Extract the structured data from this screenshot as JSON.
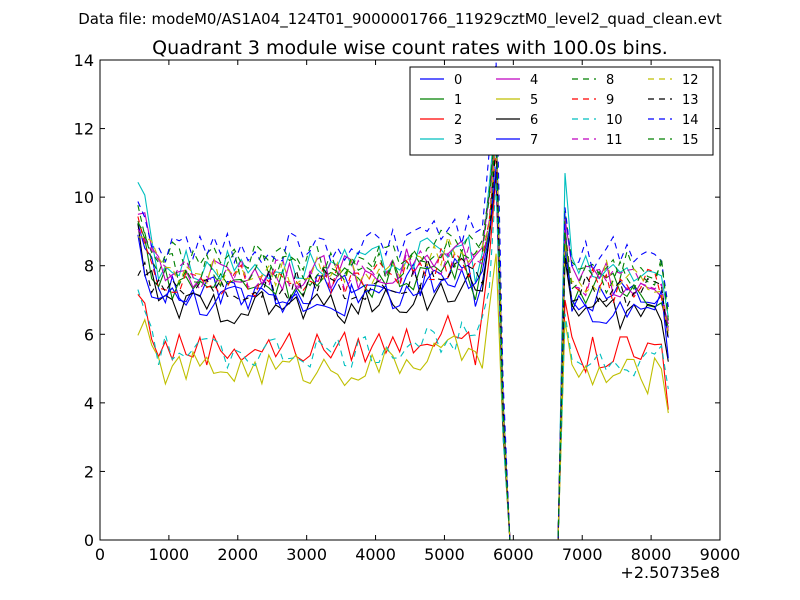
{
  "figure": {
    "suptitle": "Data file: modeM0/AS1A04_124T01_9000001766_11929cztM0_level2_quad_clean.evt",
    "title": "Quadrant 3 module wise count rates with 100.0s bins.",
    "x_offset_label": "+2.50735e8"
  },
  "chart_data": {
    "type": "line",
    "title": "Quadrant 3 module wise count rates with 100.0s bins.",
    "xlabel": "",
    "ylabel": "",
    "xlim": [
      0,
      9000
    ],
    "ylim": [
      0,
      14
    ],
    "x_offset": 250735000,
    "xticks": [
      0,
      1000,
      2000,
      3000,
      4000,
      5000,
      6000,
      7000,
      8000,
      9000
    ],
    "yticks": [
      0,
      2,
      4,
      6,
      8,
      10,
      12,
      14
    ],
    "grid": false,
    "legend": {
      "placement": "top-right",
      "columns": 4
    },
    "segments": [
      {
        "x_start": 550,
        "x_end": 5750,
        "step": 100
      },
      {
        "x_start": 6750,
        "x_end": 8250,
        "step": 100
      }
    ],
    "gap": {
      "x": [
        5850,
        5950,
        6050,
        6650,
        6750
      ],
      "y_note": "drop to zero between segments"
    },
    "series": [
      {
        "name": "0",
        "color": "#0000ff",
        "dash": "solid",
        "base": 7.3,
        "start": 9.0,
        "end": 5.9,
        "peak": 11.5,
        "restart": 9.2
      },
      {
        "name": "1",
        "color": "#008000",
        "dash": "solid",
        "base": 7.5,
        "start": 9.2,
        "end": 6.2,
        "peak": 12.0,
        "restart": 9.0
      },
      {
        "name": "2",
        "color": "#ff0000",
        "dash": "solid",
        "base": 5.6,
        "start": 7.2,
        "end": 3.8,
        "peak": 10.5,
        "restart": 7.0
      },
      {
        "name": "3",
        "color": "#00bfbf",
        "dash": "solid",
        "base": 8.0,
        "start": 10.6,
        "end": 6.5,
        "peak": 12.5,
        "restart": 10.7
      },
      {
        "name": "4",
        "color": "#bf00bf",
        "dash": "solid",
        "base": 7.8,
        "start": 9.8,
        "end": 6.3,
        "peak": 12.2,
        "restart": 9.4
      },
      {
        "name": "5",
        "color": "#bfbf00",
        "dash": "solid",
        "base": 5.0,
        "start": 6.4,
        "end": 3.7,
        "peak": 8.5,
        "restart": 6.4
      },
      {
        "name": "6",
        "color": "#000000",
        "dash": "solid",
        "base": 6.8,
        "start": 8.8,
        "end": 5.2,
        "peak": 11.0,
        "restart": 8.2
      },
      {
        "name": "7",
        "color": "#0000ff",
        "dash": "solid",
        "base": 7.0,
        "start": 8.6,
        "end": 5.3,
        "peak": 11.2,
        "restart": 8.5
      },
      {
        "name": "8",
        "color": "#008000",
        "dash": "dashed",
        "base": 8.2,
        "start": 9.6,
        "end": 6.6,
        "peak": 12.3,
        "restart": 9.6
      },
      {
        "name": "9",
        "color": "#ff0000",
        "dash": "dashed",
        "base": 7.6,
        "start": 9.4,
        "end": 6.0,
        "peak": 11.8,
        "restart": 8.8
      },
      {
        "name": "10",
        "color": "#00bfbf",
        "dash": "dashed",
        "base": 5.5,
        "start": 7.4,
        "end": 4.4,
        "peak": 10.0,
        "restart": 6.6
      },
      {
        "name": "11",
        "color": "#bf00bf",
        "dash": "dashed",
        "base": 7.7,
        "start": 9.3,
        "end": 6.1,
        "peak": 12.0,
        "restart": 9.1
      },
      {
        "name": "12",
        "color": "#bfbf00",
        "dash": "dashed",
        "base": 7.9,
        "start": 9.2,
        "end": 6.0,
        "peak": 11.6,
        "restart": 8.6
      },
      {
        "name": "13",
        "color": "#000000",
        "dash": "dashed",
        "base": 7.4,
        "start": 8.2,
        "end": 5.8,
        "peak": 11.4,
        "restart": 8.3
      },
      {
        "name": "14",
        "color": "#0000ff",
        "dash": "dashed",
        "base": 8.5,
        "start": 9.5,
        "end": 6.8,
        "peak": 13.8,
        "restart": 9.7
      },
      {
        "name": "15",
        "color": "#008000",
        "dash": "dashed",
        "base": 7.9,
        "start": 9.0,
        "end": 6.4,
        "peak": 12.1,
        "restart": 9.0
      }
    ]
  }
}
